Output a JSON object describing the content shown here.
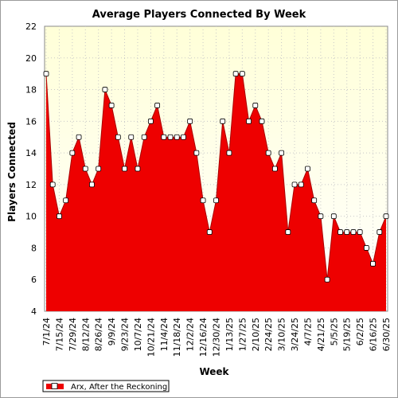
{
  "chart_data": {
    "type": "area",
    "title": "Average Players Connected By Week",
    "xlabel": "Week",
    "ylabel": "Players Connected",
    "ylim": [
      4,
      22
    ],
    "yticks": [
      4,
      6,
      8,
      10,
      12,
      14,
      16,
      18,
      20,
      22
    ],
    "grid": true,
    "legend_position": "bottom-left",
    "colors": {
      "fill": "#ee0000",
      "line": "#aa0000",
      "plot_bg_top": "#ffffd8",
      "plot_bg_bottom": "#ffffff"
    },
    "x_tick_labels": [
      "7/1/24",
      "7/15/24",
      "7/29/24",
      "8/12/24",
      "8/26/24",
      "9/9/24",
      "9/23/24",
      "10/7/24",
      "10/21/24",
      "11/4/24",
      "11/18/24",
      "12/2/24",
      "12/16/24",
      "12/30/24",
      "1/13/25",
      "1/27/25",
      "2/10/25",
      "2/24/25",
      "3/10/25",
      "3/24/25",
      "4/7/25",
      "4/21/25",
      "5/5/25",
      "5/19/25",
      "6/2/25",
      "6/16/25",
      "6/30/25"
    ],
    "series": [
      {
        "name": "Arx, After the Reckoning",
        "values": [
          19,
          12,
          10,
          11,
          14,
          15,
          13,
          12,
          13,
          18,
          17,
          15,
          13,
          15,
          13,
          15,
          16,
          17,
          15,
          15,
          15,
          15,
          16,
          14,
          11,
          9,
          11,
          16,
          14,
          19,
          19,
          16,
          17,
          16,
          14,
          13,
          14,
          9,
          12,
          12,
          13,
          11,
          10,
          6,
          10,
          9,
          9,
          9,
          9,
          8,
          7,
          9,
          10
        ]
      }
    ]
  }
}
